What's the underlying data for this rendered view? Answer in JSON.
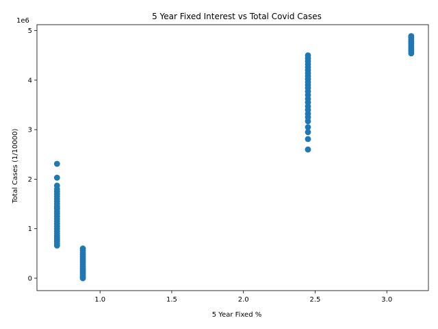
{
  "chart_data": {
    "type": "scatter",
    "title": "5 Year Fixed Interest vs Total Covid Cases",
    "xlabel": "5 Year Fixed %",
    "ylabel": "Total Cases (1/10000)",
    "y_offset_text": "1e6",
    "y_multiplier": 1000000,
    "xlim": [
      0.56,
      3.29
    ],
    "ylim": [
      -250000,
      5120000
    ],
    "xticks": [
      1.0,
      1.5,
      2.0,
      2.5,
      3.0
    ],
    "xtick_labels": [
      "1.0",
      "1.5",
      "2.0",
      "2.5",
      "3.0"
    ],
    "yticks": [
      0,
      1000000,
      2000000,
      3000000,
      4000000,
      5000000
    ],
    "ytick_labels": [
      "0",
      "1",
      "2",
      "3",
      "4",
      "5"
    ],
    "marker_color": "#1f77b4",
    "grid": false,
    "legend": "none",
    "points": [
      {
        "x": 0.7,
        "y": 660000
      },
      {
        "x": 0.7,
        "y": 700000
      },
      {
        "x": 0.7,
        "y": 740000
      },
      {
        "x": 0.7,
        "y": 780000
      },
      {
        "x": 0.7,
        "y": 820000
      },
      {
        "x": 0.7,
        "y": 860000
      },
      {
        "x": 0.7,
        "y": 900000
      },
      {
        "x": 0.7,
        "y": 950000
      },
      {
        "x": 0.7,
        "y": 1000000
      },
      {
        "x": 0.7,
        "y": 1050000
      },
      {
        "x": 0.7,
        "y": 1100000
      },
      {
        "x": 0.7,
        "y": 1150000
      },
      {
        "x": 0.7,
        "y": 1200000
      },
      {
        "x": 0.7,
        "y": 1250000
      },
      {
        "x": 0.7,
        "y": 1300000
      },
      {
        "x": 0.7,
        "y": 1350000
      },
      {
        "x": 0.7,
        "y": 1400000
      },
      {
        "x": 0.7,
        "y": 1420000
      },
      {
        "x": 0.7,
        "y": 1450000
      },
      {
        "x": 0.7,
        "y": 1500000
      },
      {
        "x": 0.7,
        "y": 1550000
      },
      {
        "x": 0.7,
        "y": 1600000
      },
      {
        "x": 0.7,
        "y": 1650000
      },
      {
        "x": 0.7,
        "y": 1700000
      },
      {
        "x": 0.7,
        "y": 1750000
      },
      {
        "x": 0.7,
        "y": 1800000
      },
      {
        "x": 0.7,
        "y": 1870000
      },
      {
        "x": 0.7,
        "y": 2030000
      },
      {
        "x": 0.7,
        "y": 2310000
      },
      {
        "x": 0.88,
        "y": 0
      },
      {
        "x": 0.88,
        "y": 20000
      },
      {
        "x": 0.88,
        "y": 50000
      },
      {
        "x": 0.88,
        "y": 80000
      },
      {
        "x": 0.88,
        "y": 110000
      },
      {
        "x": 0.88,
        "y": 140000
      },
      {
        "x": 0.88,
        "y": 170000
      },
      {
        "x": 0.88,
        "y": 200000
      },
      {
        "x": 0.88,
        "y": 240000
      },
      {
        "x": 0.88,
        "y": 280000
      },
      {
        "x": 0.88,
        "y": 320000
      },
      {
        "x": 0.88,
        "y": 360000
      },
      {
        "x": 0.88,
        "y": 400000
      },
      {
        "x": 0.88,
        "y": 440000
      },
      {
        "x": 0.88,
        "y": 480000
      },
      {
        "x": 0.88,
        "y": 520000
      },
      {
        "x": 0.88,
        "y": 560000
      },
      {
        "x": 0.88,
        "y": 600000
      },
      {
        "x": 2.45,
        "y": 2600000
      },
      {
        "x": 2.45,
        "y": 2810000
      },
      {
        "x": 2.45,
        "y": 2950000
      },
      {
        "x": 2.45,
        "y": 3050000
      },
      {
        "x": 2.45,
        "y": 3170000
      },
      {
        "x": 2.45,
        "y": 3250000
      },
      {
        "x": 2.45,
        "y": 3320000
      },
      {
        "x": 2.45,
        "y": 3400000
      },
      {
        "x": 2.45,
        "y": 3470000
      },
      {
        "x": 2.45,
        "y": 3550000
      },
      {
        "x": 2.45,
        "y": 3620000
      },
      {
        "x": 2.45,
        "y": 3700000
      },
      {
        "x": 2.45,
        "y": 3770000
      },
      {
        "x": 2.45,
        "y": 3840000
      },
      {
        "x": 2.45,
        "y": 3900000
      },
      {
        "x": 2.45,
        "y": 3960000
      },
      {
        "x": 2.45,
        "y": 4020000
      },
      {
        "x": 2.45,
        "y": 4080000
      },
      {
        "x": 2.45,
        "y": 4140000
      },
      {
        "x": 2.45,
        "y": 4200000
      },
      {
        "x": 2.45,
        "y": 4260000
      },
      {
        "x": 2.45,
        "y": 4320000
      },
      {
        "x": 2.45,
        "y": 4380000
      },
      {
        "x": 2.45,
        "y": 4440000
      },
      {
        "x": 2.45,
        "y": 4500000
      },
      {
        "x": 3.17,
        "y": 4540000
      },
      {
        "x": 3.17,
        "y": 4580000
      },
      {
        "x": 3.17,
        "y": 4620000
      },
      {
        "x": 3.17,
        "y": 4660000
      },
      {
        "x": 3.17,
        "y": 4700000
      },
      {
        "x": 3.17,
        "y": 4740000
      },
      {
        "x": 3.17,
        "y": 4780000
      },
      {
        "x": 3.17,
        "y": 4820000
      },
      {
        "x": 3.17,
        "y": 4860000
      },
      {
        "x": 3.17,
        "y": 4890000
      }
    ]
  }
}
